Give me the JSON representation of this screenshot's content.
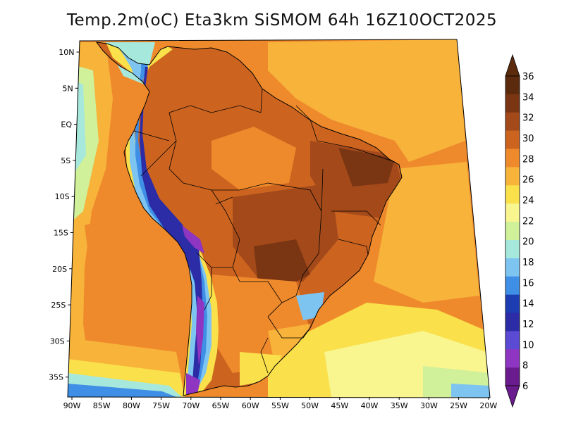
{
  "title": "Temp.2m(oC) Eta3km SiSMOM 64h 16Z10OCT2025",
  "map": {
    "lat_labels": [
      "10N",
      "5N",
      "EQ",
      "5S",
      "10S",
      "15S",
      "20S",
      "25S",
      "30S",
      "35S"
    ],
    "lat_values": [
      10,
      5,
      0,
      -5,
      -10,
      -15,
      -20,
      -25,
      -30,
      -35
    ],
    "lon_labels": [
      "90W",
      "85W",
      "80W",
      "75W",
      "70W",
      "65W",
      "60W",
      "55W",
      "50W",
      "45W",
      "40W",
      "35W",
      "30W",
      "25W",
      "20W"
    ],
    "lon_values": [
      -90,
      -85,
      -80,
      -75,
      -70,
      -65,
      -60,
      -55,
      -50,
      -45,
      -40,
      -35,
      -30,
      -25,
      -20
    ],
    "lat_range": [
      -38,
      12
    ],
    "lon_range": [
      -91,
      -20
    ]
  },
  "colorbar": {
    "labels": [
      "36",
      "34",
      "32",
      "30",
      "28",
      "26",
      "24",
      "22",
      "20",
      "18",
      "16",
      "14",
      "12",
      "10",
      "8",
      "6"
    ],
    "colors": [
      "#5c2a0c",
      "#7a3613",
      "#a44a1a",
      "#cc6420",
      "#ef8a2c",
      "#f7b33a",
      "#fae04a",
      "#f9f58f",
      "#d0f09a",
      "#a7e8dc",
      "#7dc4f1",
      "#3f8fe6",
      "#1d3eb3",
      "#2b2ca6",
      "#5a4ad4",
      "#8e35c2",
      "#6a1c8e"
    ],
    "top_color": "#5c2a0c",
    "bottom_color": "#6a1c8e"
  }
}
